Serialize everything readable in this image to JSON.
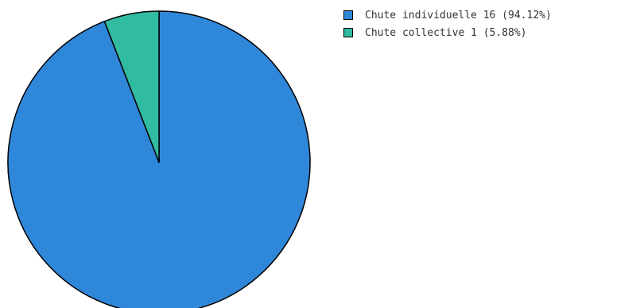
{
  "chart_data": {
    "type": "pie",
    "title": "",
    "start_angle": "top",
    "direction": "clockwise",
    "legend_position": "top-right",
    "slices": [
      {
        "label": "Chute individuelle",
        "value": 16,
        "percent": 94.12,
        "color": "#2f87d9",
        "legend_text": "Chute individuelle 16 (94.12%)"
      },
      {
        "label": "Chute collective",
        "value": 1,
        "percent": 5.88,
        "color": "#31bba0",
        "legend_text": "Chute collective 1 (5.88%)"
      }
    ]
  }
}
